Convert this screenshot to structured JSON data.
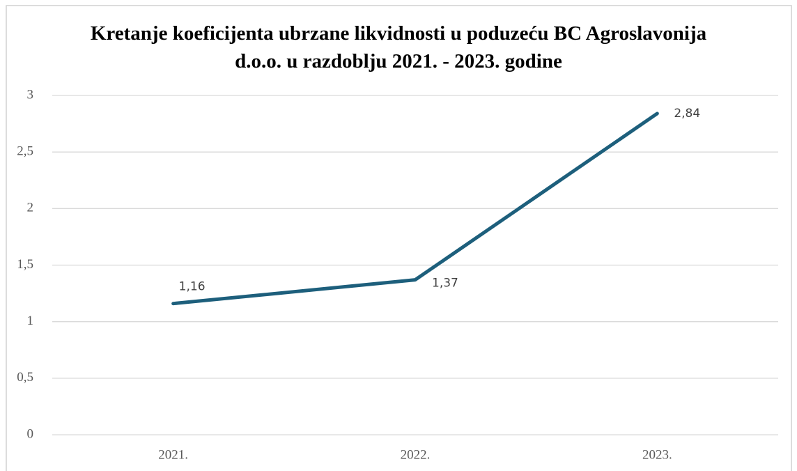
{
  "chart_data": {
    "type": "line",
    "title": "Kretanje koeficijenta ubrzane likvidnosti u poduzeću BC Agroslavonija d.o.o. u razdoblju 2021. - 2023. godine",
    "categories": [
      "2021.",
      "2022.",
      "2023."
    ],
    "series": [
      {
        "name": null,
        "color": "#1d5f7c",
        "values": [
          1.16,
          1.37,
          2.84
        ],
        "value_labels": [
          "1,16",
          "1,37",
          "2,84"
        ]
      }
    ],
    "ylim": [
      0,
      3
    ],
    "yticks": [
      0,
      {
        "value": 0.5,
        "label": "0,5"
      },
      1,
      {
        "value": 1.5,
        "label": "1,5"
      },
      2,
      {
        "value": 2.5,
        "label": "2,5"
      },
      3
    ],
    "grid": true
  }
}
